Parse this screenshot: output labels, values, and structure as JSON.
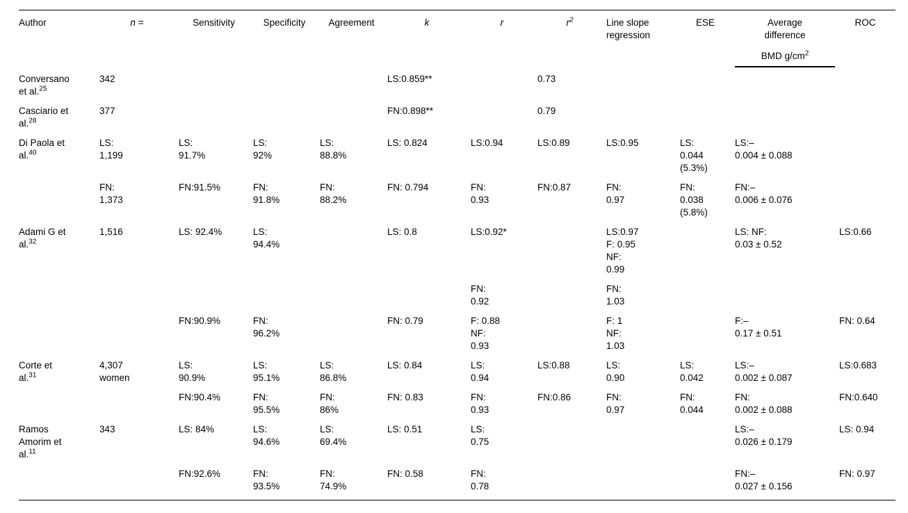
{
  "colors": {
    "text": "#000000",
    "background": "#ffffff",
    "rule": "#000000"
  },
  "table": {
    "columns": [
      {
        "key": "author",
        "label": "Author",
        "align": "left"
      },
      {
        "key": "n",
        "label": "n =",
        "italic": true
      },
      {
        "key": "sensitivity",
        "label": "Sensitivity"
      },
      {
        "key": "specificity",
        "label": "Specificity"
      },
      {
        "key": "agreement",
        "label": "Agreement"
      },
      {
        "key": "k",
        "label": "k",
        "italic": true
      },
      {
        "key": "r",
        "label": "r",
        "italic": true
      },
      {
        "key": "r2",
        "label": "r^{2}",
        "italic": true
      },
      {
        "key": "line-slope-regression",
        "label": "Line slope\nregression",
        "align": "left"
      },
      {
        "key": "ese",
        "label": "ESE"
      },
      {
        "key": "average-difference",
        "label": "Average\ndifference",
        "sublabel": "BMD g/cm^{2}"
      },
      {
        "key": "roc",
        "label": "ROC"
      }
    ],
    "rows": [
      {
        "cells": [
          "Conversano\net al.^{25}",
          "342",
          "",
          "",
          "",
          "LS:0.859**",
          "",
          "0.73",
          "",
          "",
          "",
          ""
        ]
      },
      {
        "cells": [
          "Casciario et\nal.^{28}",
          "377",
          "",
          "",
          "",
          "FN:0.898**",
          "",
          "0.79",
          "",
          "",
          "",
          ""
        ]
      },
      {
        "cells": [
          "Di Paola et\nal.^{40}",
          "LS:\n1,199",
          "LS:\n91.7%",
          "LS:\n92%",
          "LS:\n88.8%",
          "LS: 0.824",
          "LS:0.94",
          "LS:0.89",
          "LS:0.95",
          "LS:\n0.044\n(5.3%)",
          "LS:–\n0.004 ± 0.088",
          ""
        ]
      },
      {
        "cells": [
          "",
          "FN:\n1,373",
          "FN:91.5%",
          "FN:\n91.8%",
          "FN:\n88.2%",
          "FN: 0.794",
          "FN:\n0.93",
          "FN:0.87",
          "FN:\n0.97",
          "FN:\n0.038\n(5.8%)",
          "FN:–\n0.006 ± 0.076",
          ""
        ]
      },
      {
        "cells": [
          "Adami G et\nal.^{32}",
          "1,516",
          "LS: 92.4%",
          "LS:\n94.4%",
          "",
          "LS: 0.8",
          "LS:0.92*",
          "",
          "LS:0.97\nF: 0.95\nNF:\n0.99",
          "",
          "LS: NF:\n0.03 ± 0.52",
          "LS:0.66"
        ]
      },
      {
        "cells": [
          "",
          "",
          "",
          "",
          "",
          "",
          "FN:\n0.92",
          "",
          "FN:\n1.03",
          "",
          "",
          ""
        ]
      },
      {
        "cells": [
          "",
          "",
          "FN:90.9%",
          "FN:\n96.2%",
          "",
          "FN: 0.79",
          "F: 0.88\nNF:\n0.93",
          "",
          "F: 1\nNF:\n1.03",
          "",
          "F:–\n0.17 ± 0.51",
          "FN: 0.64"
        ]
      },
      {
        "cells": [
          "Corte et\nal.^{31}",
          "4,307\nwomen",
          "LS:\n90.9%",
          "LS:\n95.1%",
          "LS:\n86.8%",
          "LS: 0.84",
          "LS:\n0.94",
          "LS:0.88",
          "LS:\n0.90",
          "LS:\n0.042",
          "LS:–\n0.002 ± 0.087",
          "LS:0.683"
        ]
      },
      {
        "cells": [
          "",
          "",
          "FN:90.4%",
          "FN:\n95.5%",
          "FN:\n86%",
          "FN: 0.83",
          "FN:\n0.93",
          "FN:0.86",
          "FN:\n0.97",
          "FN:\n0.044",
          "FN:\n0.002 ± 0.088",
          "FN:0.640"
        ]
      },
      {
        "cells": [
          "Ramos\nAmorim et\nal.^{11}",
          "343",
          "LS: 84%",
          "LS:\n94.6%",
          "LS:\n69.4%",
          "LS: 0.51",
          "LS:\n0.75",
          "",
          "",
          "",
          "LS:–\n0.026 ± 0.179",
          "LS: 0.94"
        ]
      },
      {
        "cells": [
          "",
          "",
          "FN:92.6%",
          "FN:\n93.5%",
          "FN:\n74.9%",
          "FN: 0.58",
          "FN:\n0.78",
          "",
          "",
          "",
          "FN:–\n0.027 ± 0.156",
          "FN: 0.97"
        ]
      }
    ]
  }
}
